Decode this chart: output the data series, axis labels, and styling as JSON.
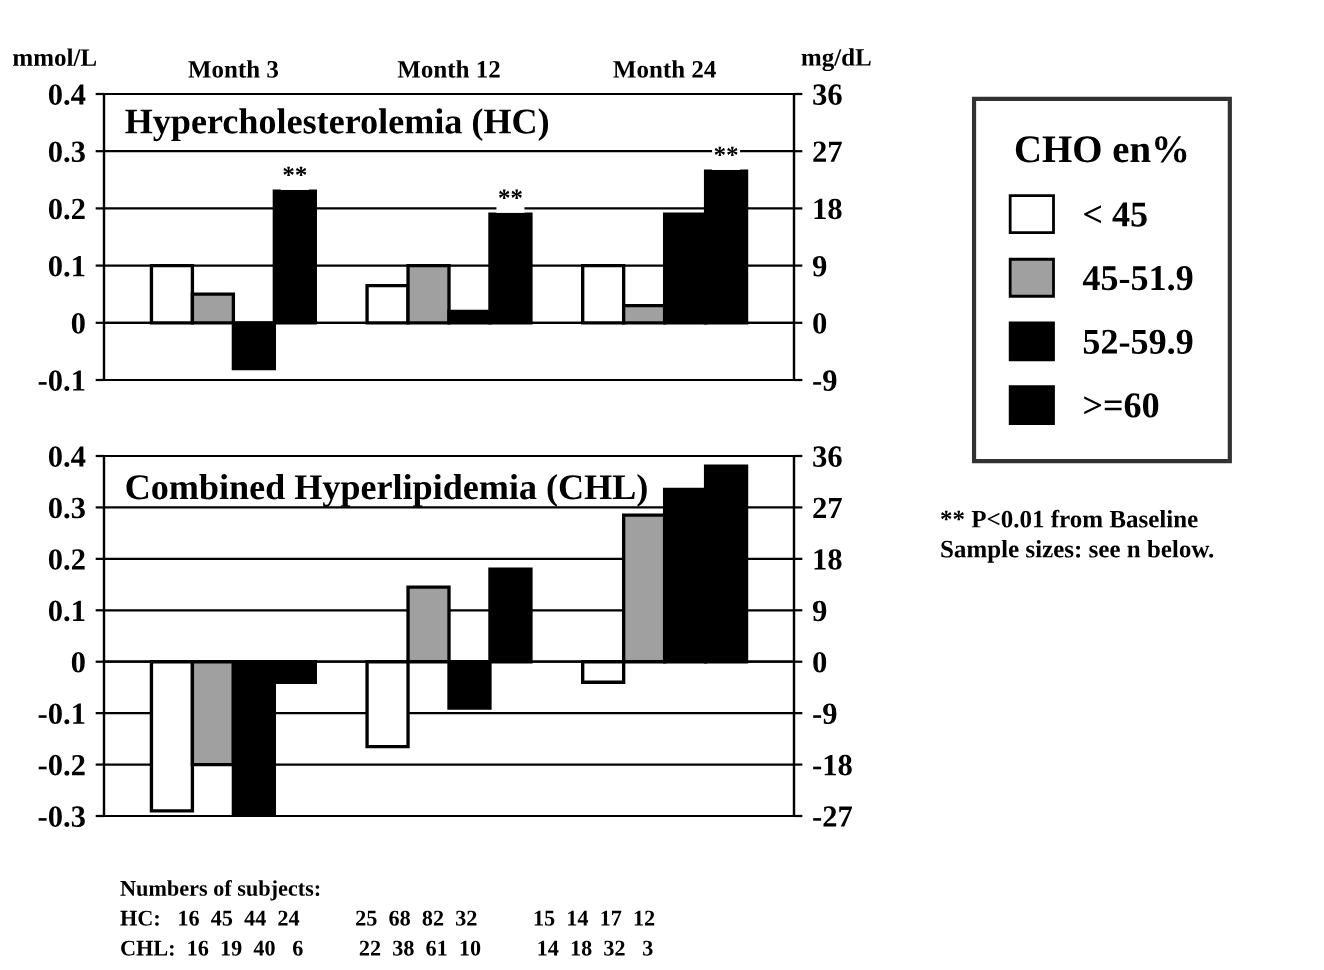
{
  "chart_data": [
    {
      "type": "bar",
      "title": "Hypercholesterolemia (HC)",
      "ylabel": "mmol/L",
      "y2label": "mg/dL",
      "legend_title": "CHO en%",
      "legend": "right",
      "grid": "y",
      "categories": [
        "Month 3",
        "Month 12",
        "Month 24"
      ],
      "series": [
        {
          "name": "< 45",
          "color": "#ffffff",
          "values": [
            0.1,
            0.065,
            0.1
          ]
        },
        {
          "name": "45-51.9",
          "color": "#a0a0a0",
          "values": [
            0.05,
            0.1,
            0.03
          ]
        },
        {
          "name": "52-59.9",
          "color": "#000000",
          "values": [
            -0.08,
            0.02,
            0.19
          ]
        },
        {
          "name": ">=60",
          "color": "#000000",
          "values": [
            0.23,
            0.19,
            0.265
          ],
          "value_labels": [
            "**",
            "**",
            "**"
          ]
        }
      ],
      "ylim": [
        -0.1,
        0.4
      ],
      "yticks": [
        -0.1,
        0,
        0.1,
        0.2,
        0.3,
        0.4
      ],
      "y2lim": [
        -9,
        36
      ],
      "y2ticks": [
        -9,
        0,
        9,
        18,
        27,
        36
      ],
      "annotations": [
        "** P<0.01 from Baseline",
        "Sample sizes: see n below."
      ]
    },
    {
      "type": "bar",
      "title": "Combined Hyperlipidemia (CHL)",
      "grid": "y",
      "tick_labels": "y",
      "categories": [
        null,
        null,
        null
      ],
      "series": [
        {
          "color": "#ffffff",
          "values": [
            -0.29,
            -0.165,
            -0.04
          ]
        },
        {
          "color": "#a0a0a0",
          "values": [
            -0.2,
            0.145,
            0.285
          ]
        },
        {
          "color": "#000000",
          "values": [
            -0.3,
            -0.09,
            0.335
          ]
        },
        {
          "color": "#000000",
          "values": [
            -0.04,
            0.18,
            0.38
          ]
        }
      ],
      "ylim": [
        -0.3,
        0.4
      ],
      "yticks": [
        -0.3,
        -0.2,
        -0.1,
        0,
        0.1,
        0.2,
        0.3,
        0.4
      ],
      "y2lim": [
        -27,
        36
      ],
      "y2ticks": [
        -27,
        -18,
        -9,
        0,
        9,
        18,
        27,
        36
      ],
      "annotations": [
        "Numbers of subjects:",
        "HC:   16  45  44  24          25  68  82  32          15  14  17  12",
        "CHL:  16  19  40   6          22  38  61  10          14  18  32   3"
      ]
    }
  ]
}
